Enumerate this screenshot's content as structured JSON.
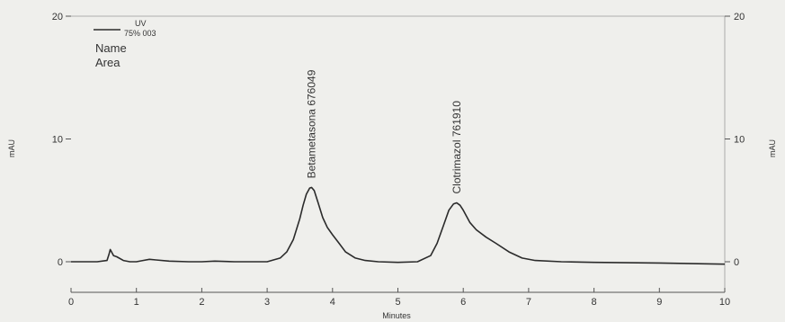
{
  "chart_data": {
    "type": "line",
    "xlabel": "Minutes",
    "ylabel_left": "mAU",
    "ylabel_right": "mAU",
    "xlim": [
      0,
      10
    ],
    "ylim": [
      0,
      20
    ],
    "x_ticks": [
      0,
      1,
      2,
      3,
      4,
      5,
      6,
      7,
      8,
      9,
      10
    ],
    "y_ticks": [
      0,
      10,
      20
    ],
    "grid": false,
    "legend": {
      "position": "top-left",
      "series_label": "UV",
      "series_sublabel": "75% 003",
      "lines": [
        "Name",
        "Area"
      ]
    },
    "series": [
      {
        "name": "UV",
        "x": [
          0.0,
          0.4,
          0.55,
          0.58,
          0.6,
          0.62,
          0.65,
          0.7,
          0.8,
          0.9,
          1.0,
          1.1,
          1.2,
          1.3,
          1.5,
          1.8,
          2.0,
          2.2,
          2.5,
          2.8,
          3.0,
          3.2,
          3.3,
          3.4,
          3.5,
          3.55,
          3.6,
          3.65,
          3.68,
          3.72,
          3.78,
          3.85,
          3.92,
          4.0,
          4.1,
          4.2,
          4.35,
          4.5,
          4.7,
          5.0,
          5.3,
          5.5,
          5.6,
          5.7,
          5.78,
          5.85,
          5.9,
          5.95,
          6.0,
          6.1,
          6.2,
          6.35,
          6.5,
          6.7,
          6.9,
          7.1,
          7.5,
          8.0,
          9.0,
          10.0
        ],
        "y": [
          0.0,
          0.0,
          0.1,
          0.6,
          1.0,
          0.8,
          0.5,
          0.4,
          0.1,
          0.0,
          0.0,
          0.1,
          0.2,
          0.15,
          0.05,
          0.0,
          0.0,
          0.05,
          0.0,
          0.0,
          0.0,
          0.3,
          0.8,
          1.8,
          3.5,
          4.6,
          5.5,
          6.0,
          6.05,
          5.8,
          4.8,
          3.6,
          2.8,
          2.2,
          1.5,
          0.8,
          0.3,
          0.1,
          0.0,
          -0.05,
          0.0,
          0.5,
          1.5,
          3.0,
          4.2,
          4.7,
          4.8,
          4.6,
          4.2,
          3.2,
          2.6,
          2.0,
          1.5,
          0.8,
          0.3,
          0.1,
          0.0,
          -0.05,
          -0.1,
          -0.2
        ]
      }
    ],
    "annotations": [
      {
        "text": "Betametasona  676049",
        "x": 3.68,
        "y": 6.05
      },
      {
        "text": "Clotrimazol  761910",
        "x": 5.9,
        "y": 4.8
      }
    ],
    "colors": {
      "line": "#2b2b2b",
      "axis": "#555555",
      "background": "#efefec"
    }
  }
}
